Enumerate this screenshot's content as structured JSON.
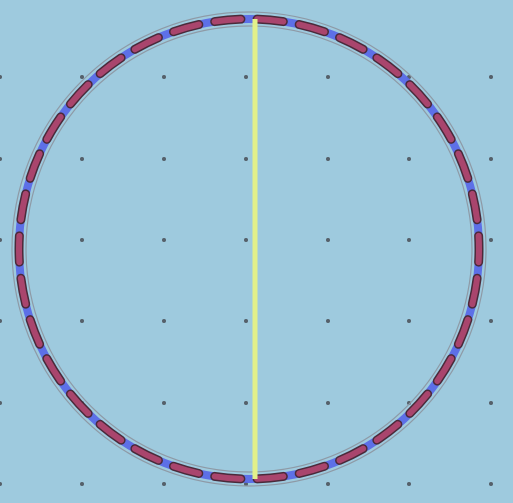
{
  "canvas": {
    "background_color": "#9ecade",
    "grid_dot_color": "#55606a",
    "circle_outline_color": "#8e9aa6",
    "ring_band_color": "#5566e8",
    "segment_fill_color": "#a9456d",
    "segment_stroke_color": "#4a2a3a",
    "diameter_line_color": "#e2f08a",
    "segment_count": 34
  }
}
